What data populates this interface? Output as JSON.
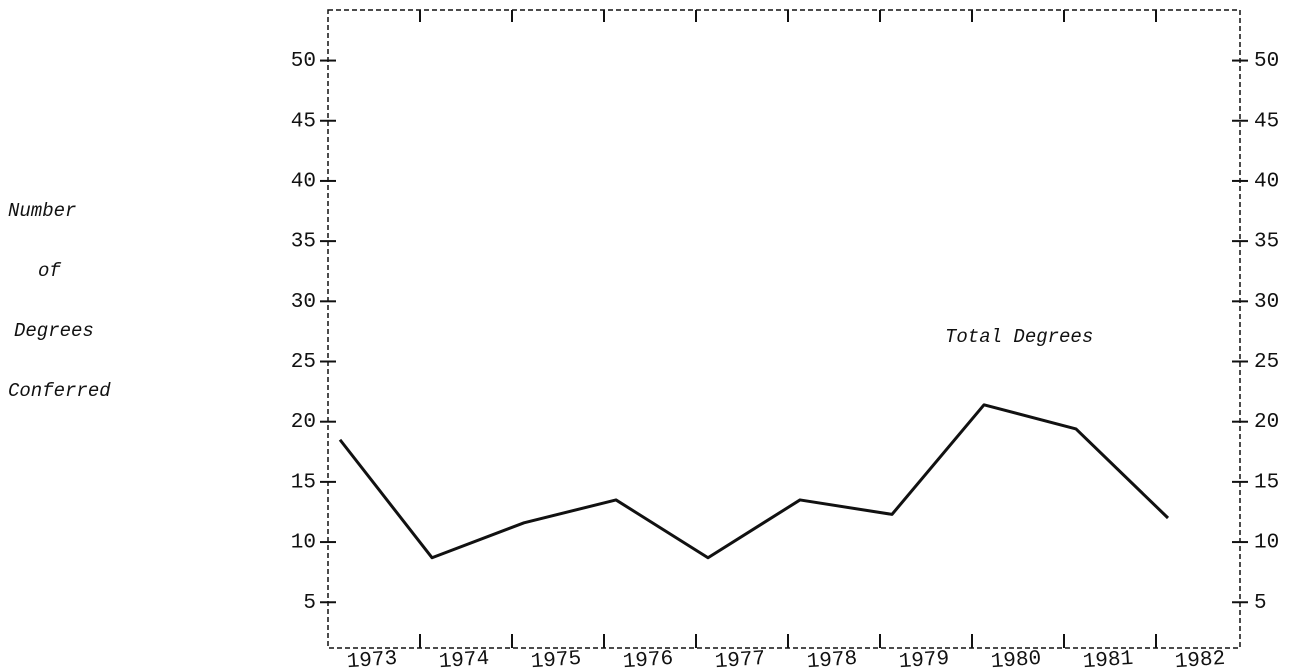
{
  "chart_data": {
    "type": "line",
    "annotation": "Total Degrees",
    "ylabel_lines": [
      "Number",
      "of",
      "Degrees",
      "Conferred"
    ],
    "categories": [
      "1973",
      "1974",
      "1975",
      "1976",
      "1977",
      "1978",
      "1979",
      "1980",
      "1981",
      "1982"
    ],
    "series": [
      {
        "name": "Total Degrees",
        "color": "#111111",
        "values": [
          18.5,
          8.7,
          11.6,
          13.5,
          8.7,
          13.5,
          12.3,
          21.4,
          19.4,
          12
        ]
      }
    ],
    "ylim": [
      1.2,
      54.2
    ],
    "yticks": [
      5,
      10,
      15,
      20,
      25,
      30,
      35,
      40,
      45,
      50
    ],
    "y2lim": [
      1.2,
      54.2
    ],
    "y2ticks": [
      5,
      10,
      15,
      20,
      25,
      30,
      35,
      40,
      45,
      50
    ],
    "grid": false
  }
}
